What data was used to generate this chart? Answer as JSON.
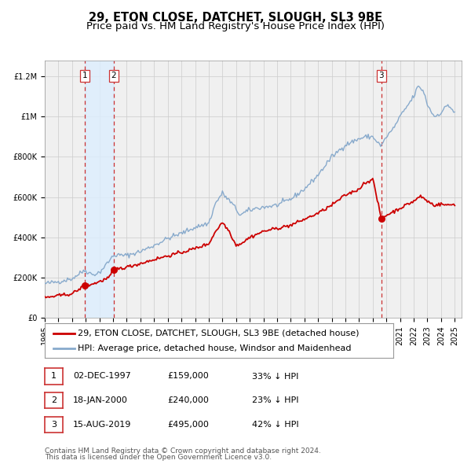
{
  "title": "29, ETON CLOSE, DATCHET, SLOUGH, SL3 9BE",
  "subtitle": "Price paid vs. HM Land Registry's House Price Index (HPI)",
  "xlim": [
    1995.0,
    2025.5
  ],
  "ylim": [
    0,
    1280000
  ],
  "yticks": [
    0,
    200000,
    400000,
    600000,
    800000,
    1000000,
    1200000
  ],
  "ytick_labels": [
    "£0",
    "£200K",
    "£400K",
    "£600K",
    "£800K",
    "£1M",
    "£1.2M"
  ],
  "xtick_years": [
    1995,
    1996,
    1997,
    1998,
    1999,
    2000,
    2001,
    2002,
    2003,
    2004,
    2005,
    2006,
    2007,
    2008,
    2009,
    2010,
    2011,
    2012,
    2013,
    2014,
    2015,
    2016,
    2017,
    2018,
    2019,
    2020,
    2021,
    2022,
    2023,
    2024,
    2025
  ],
  "price_color": "#cc0000",
  "hpi_color": "#88aacc",
  "sale_marker_color": "#cc0000",
  "vline_color": "#cc3333",
  "shade_color": "#ddeeff",
  "grid_color": "#cccccc",
  "background_color": "#ffffff",
  "plot_bg_color": "#f0f0f0",
  "sales": [
    {
      "date_num": 1997.92,
      "price": 159000,
      "label": "1"
    },
    {
      "date_num": 2000.05,
      "price": 240000,
      "label": "2"
    },
    {
      "date_num": 2019.62,
      "price": 495000,
      "label": "3"
    }
  ],
  "sale_labels_info": [
    {
      "num": "1",
      "date": "02-DEC-1997",
      "price": "£159,000",
      "pct": "33% ↓ HPI"
    },
    {
      "num": "2",
      "date": "18-JAN-2000",
      "price": "£240,000",
      "pct": "23% ↓ HPI"
    },
    {
      "num": "3",
      "date": "15-AUG-2019",
      "price": "£495,000",
      "pct": "42% ↓ HPI"
    }
  ],
  "legend_line1": "29, ETON CLOSE, DATCHET, SLOUGH, SL3 9BE (detached house)",
  "legend_line2": "HPI: Average price, detached house, Windsor and Maidenhead",
  "footnote1": "Contains HM Land Registry data © Crown copyright and database right 2024.",
  "footnote2": "This data is licensed under the Open Government Licence v3.0.",
  "title_fontsize": 10.5,
  "subtitle_fontsize": 9.5,
  "tick_fontsize": 7,
  "legend_fontsize": 8,
  "table_fontsize": 8,
  "footnote_fontsize": 6.5
}
